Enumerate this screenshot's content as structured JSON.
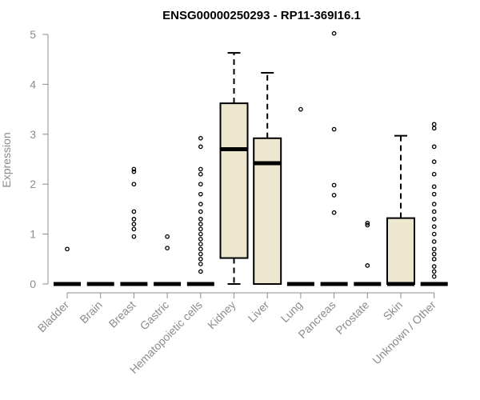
{
  "chart_data": {
    "type": "box",
    "title": "ENSG00000250293 - RP11-369I16.1",
    "ylabel": "Expression",
    "xlabel": "",
    "ylim": [
      0,
      5
    ],
    "yticks": [
      0,
      1,
      2,
      3,
      4,
      5
    ],
    "categories": [
      "Bladder",
      "Brain",
      "Breast",
      "Gastric",
      "Hematopoietic cells",
      "Kidney",
      "Liver",
      "Lung",
      "Pancreas",
      "Prostate",
      "Skin",
      "Unknown / Other"
    ],
    "box_fill": "#ede7d0",
    "series": [
      {
        "category": "Bladder",
        "q1": 0,
        "median": 0,
        "q3": 0,
        "whisker_low": 0,
        "whisker_high": 0,
        "outliers": [
          0.7
        ]
      },
      {
        "category": "Brain",
        "q1": 0,
        "median": 0,
        "q3": 0,
        "whisker_low": 0,
        "whisker_high": 0,
        "outliers": []
      },
      {
        "category": "Breast",
        "q1": 0,
        "median": 0,
        "q3": 0,
        "whisker_low": 0,
        "whisker_high": 0,
        "outliers": [
          0.95,
          1.1,
          1.2,
          1.3,
          1.45,
          2.0,
          2.25,
          2.3
        ]
      },
      {
        "category": "Gastric",
        "q1": 0,
        "median": 0,
        "q3": 0,
        "whisker_low": 0,
        "whisker_high": 0,
        "outliers": [
          0.72,
          0.95
        ]
      },
      {
        "category": "Hematopoietic cells",
        "q1": 0,
        "median": 0,
        "q3": 0,
        "whisker_low": 0,
        "whisker_high": 0,
        "outliers": [
          0.25,
          0.4,
          0.5,
          0.6,
          0.7,
          0.8,
          0.9,
          1.0,
          1.1,
          1.2,
          1.3,
          1.45,
          1.6,
          1.8,
          2.0,
          2.2,
          2.3,
          2.75,
          2.92
        ]
      },
      {
        "category": "Kidney",
        "q1": 0.52,
        "median": 2.7,
        "q3": 3.62,
        "whisker_low": 0,
        "whisker_high": 4.63,
        "outliers": []
      },
      {
        "category": "Liver",
        "q1": 0,
        "median": 2.42,
        "q3": 2.92,
        "whisker_low": 0,
        "whisker_high": 4.23,
        "outliers": []
      },
      {
        "category": "Lung",
        "q1": 0,
        "median": 0,
        "q3": 0,
        "whisker_low": 0,
        "whisker_high": 0,
        "outliers": [
          3.5
        ]
      },
      {
        "category": "Pancreas",
        "q1": 0,
        "median": 0,
        "q3": 0,
        "whisker_low": 0,
        "whisker_high": 0,
        "outliers": [
          1.43,
          1.78,
          1.98,
          3.1,
          5.02
        ]
      },
      {
        "category": "Prostate",
        "q1": 0,
        "median": 0,
        "q3": 0,
        "whisker_low": 0,
        "whisker_high": 0,
        "outliers": [
          0.37,
          1.18,
          1.22
        ]
      },
      {
        "category": "Skin",
        "q1": 0,
        "median": 0,
        "q3": 1.32,
        "whisker_low": 0,
        "whisker_high": 2.97,
        "outliers": []
      },
      {
        "category": "Unknown / Other",
        "q1": 0,
        "median": 0,
        "q3": 0,
        "whisker_low": 0,
        "whisker_high": 0,
        "outliers": [
          0.15,
          0.25,
          0.35,
          0.5,
          0.6,
          0.7,
          0.85,
          1.0,
          1.15,
          1.3,
          1.45,
          1.6,
          1.8,
          1.95,
          2.2,
          2.45,
          2.75,
          3.12,
          3.2
        ]
      }
    ]
  }
}
